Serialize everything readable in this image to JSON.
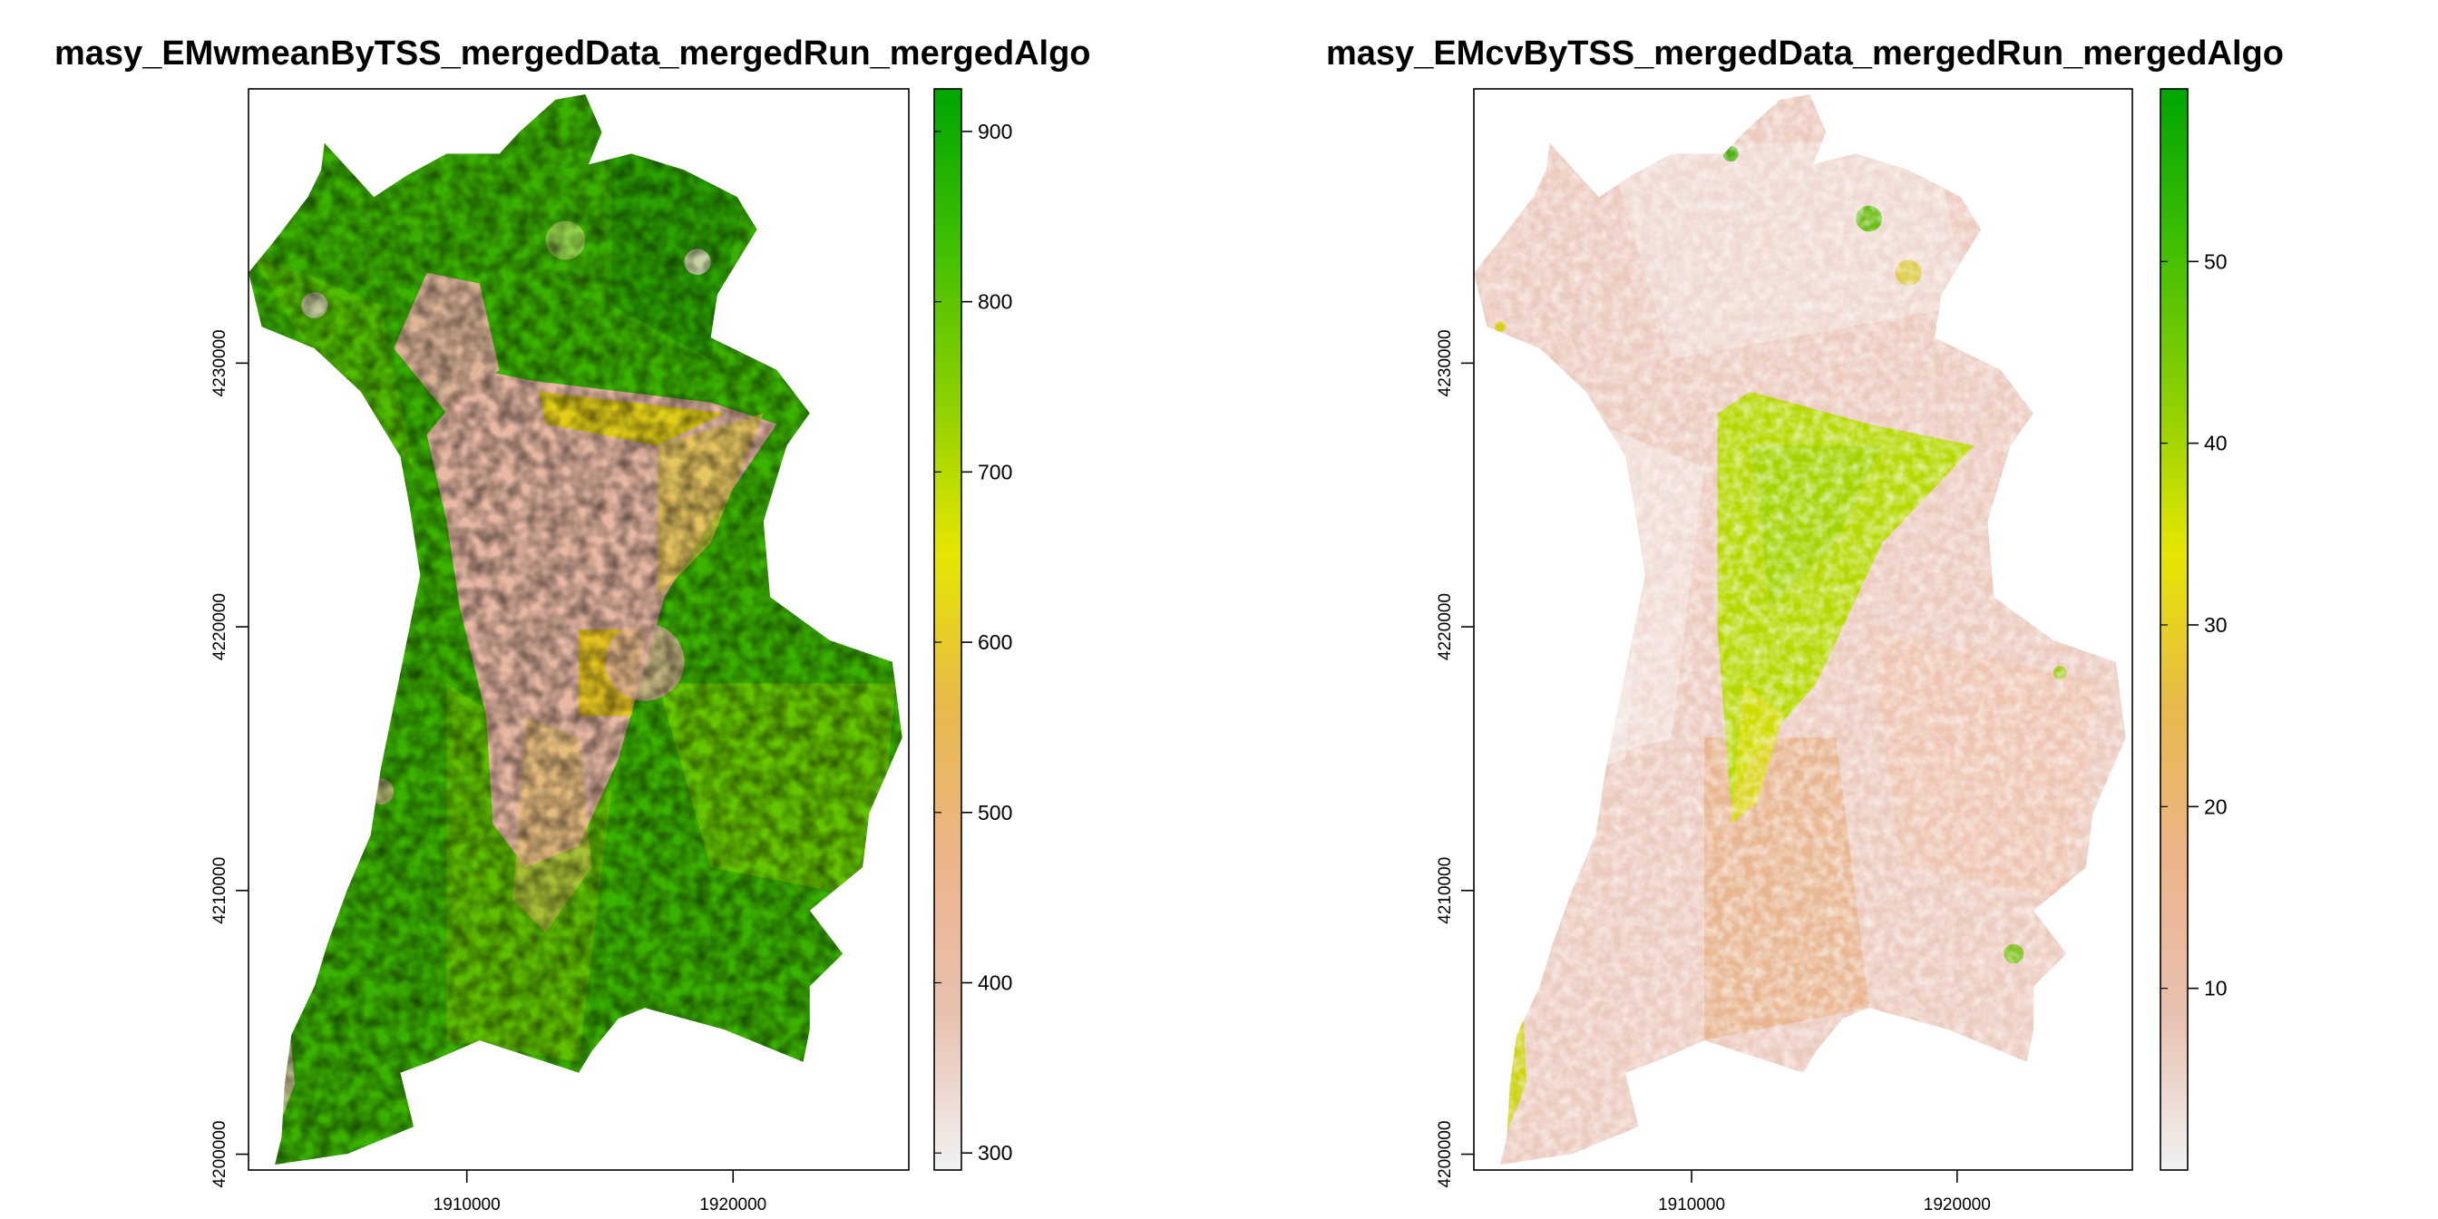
{
  "colors": {
    "ramp": [
      "#f2f2f2",
      "#e8c1b0",
      "#edb48b",
      "#e8b94a",
      "#e6e600",
      "#8bd000",
      "#3fbf00",
      "#00a600"
    ],
    "frame": "#000000",
    "background": "#ffffff"
  },
  "chart_data": [
    {
      "type": "heatmap",
      "title": "masy_EMwmeanByTSS_mergedData_mergedRun_mergedAlgo",
      "x_ticks": [
        "1910000",
        "1920000"
      ],
      "y_ticks": [
        "4200000",
        "4210000",
        "4220000",
        "4230000"
      ],
      "xlim": [
        1901800,
        1926600
      ],
      "ylim": [
        4199400,
        4240400
      ],
      "legend": {
        "placement": "right",
        "range": [
          290,
          925
        ],
        "ticks": [
          300,
          400,
          500,
          600,
          700,
          800,
          900
        ],
        "tick_labels": [
          "300",
          "400",
          "500",
          "600",
          "700",
          "800",
          "900"
        ]
      }
    },
    {
      "type": "heatmap",
      "title": "masy_EMcvByTSS_mergedData_mergedRun_mergedAlgo",
      "x_ticks": [
        "1910000",
        "1920000"
      ],
      "y_ticks": [
        "4200000",
        "4210000",
        "4220000",
        "4230000"
      ],
      "xlim": [
        1901800,
        1926600
      ],
      "ylim": [
        4199400,
        4240400
      ],
      "legend": {
        "placement": "right",
        "range": [
          0,
          59.5
        ],
        "ticks": [
          10,
          20,
          30,
          40,
          50
        ],
        "tick_labels": [
          "10",
          "20",
          "30",
          "40",
          "50"
        ]
      }
    }
  ]
}
